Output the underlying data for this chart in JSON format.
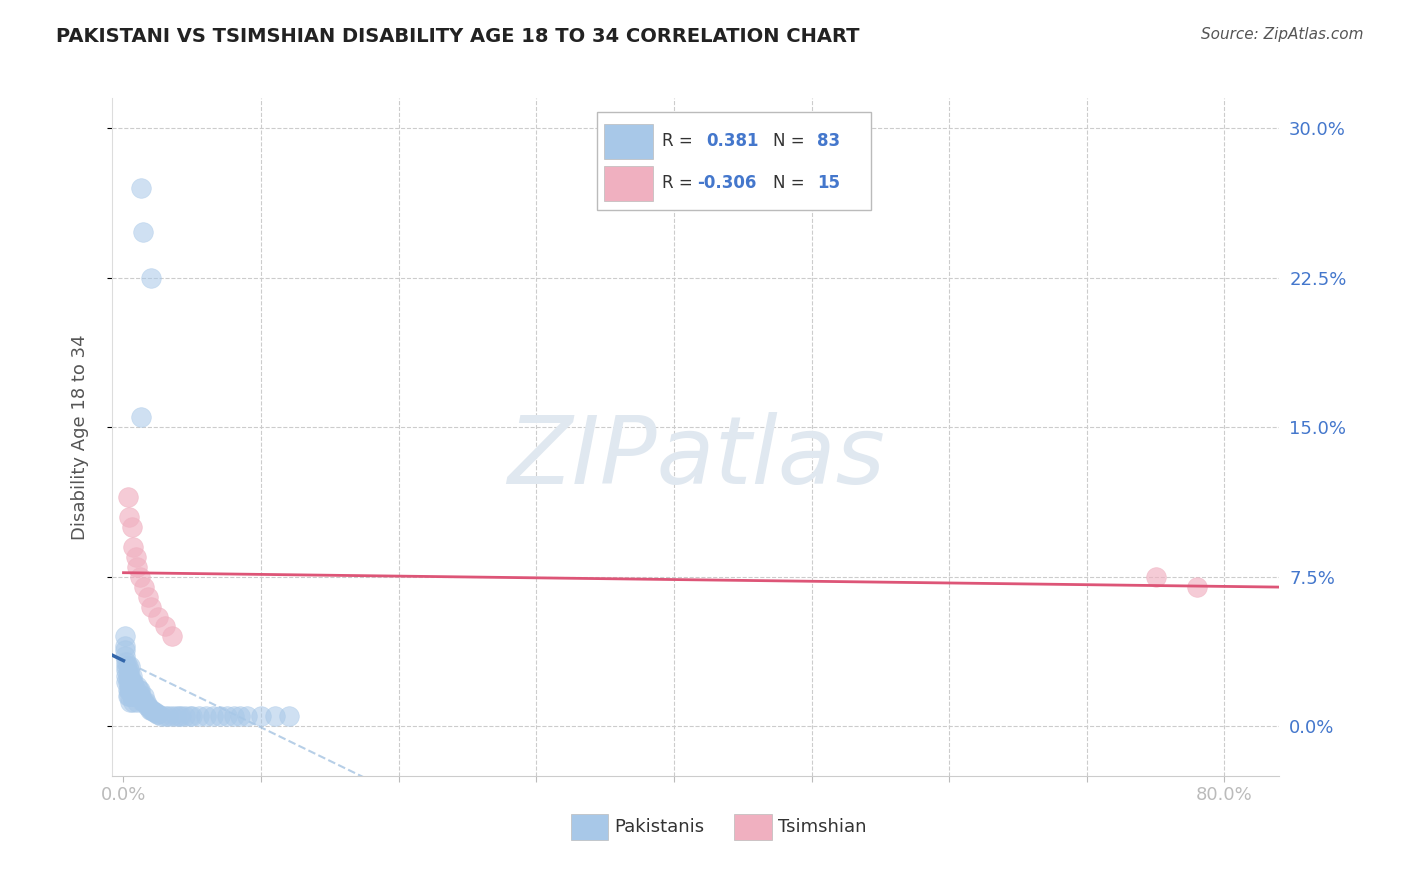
{
  "title": "PAKISTANI VS TSIMSHIAN DISABILITY AGE 18 TO 34 CORRELATION CHART",
  "source": "Source: ZipAtlas.com",
  "xlabel_tick_vals": [
    0.0,
    0.1,
    0.2,
    0.3,
    0.4,
    0.5,
    0.6,
    0.7,
    0.8
  ],
  "xlabel_labels": [
    "0.0%",
    "",
    "",
    "",
    "",
    "",
    "",
    "",
    "80.0%"
  ],
  "ylabel_tick_vals": [
    0.0,
    0.075,
    0.15,
    0.225,
    0.3
  ],
  "ylabel_labels": [
    "0.0%",
    "7.5%",
    "15.0%",
    "22.5%",
    "30.0%"
  ],
  "xlim": [
    -0.008,
    0.84
  ],
  "ylim": [
    -0.025,
    0.315
  ],
  "blue_color": "#a8c8e8",
  "pink_color": "#f0b0c0",
  "line_blue": "#3366aa",
  "line_pink": "#dd5577",
  "dashed_blue": "#99bbdd",
  "accent_blue": "#4477cc",
  "grid_color": "#cccccc",
  "bg_color": "#ffffff",
  "watermark_color": "#e0e8f0",
  "R1": "0.381",
  "N1": "83",
  "R2": "-0.306",
  "N2": "15",
  "pak_x": [
    0.001,
    0.001,
    0.001,
    0.001,
    0.002,
    0.002,
    0.002,
    0.002,
    0.002,
    0.003,
    0.003,
    0.003,
    0.003,
    0.003,
    0.004,
    0.004,
    0.004,
    0.004,
    0.004,
    0.005,
    0.005,
    0.005,
    0.005,
    0.005,
    0.006,
    0.006,
    0.006,
    0.006,
    0.007,
    0.007,
    0.007,
    0.007,
    0.008,
    0.008,
    0.008,
    0.009,
    0.009,
    0.01,
    0.01,
    0.01,
    0.011,
    0.011,
    0.012,
    0.012,
    0.013,
    0.014,
    0.015,
    0.015,
    0.016,
    0.017,
    0.018,
    0.019,
    0.02,
    0.021,
    0.022,
    0.023,
    0.024,
    0.025,
    0.027,
    0.03,
    0.032,
    0.035,
    0.038,
    0.04,
    0.042,
    0.045,
    0.048,
    0.05,
    0.055,
    0.06,
    0.065,
    0.07,
    0.075,
    0.08,
    0.085,
    0.09,
    0.1,
    0.11,
    0.12,
    0.013,
    0.014,
    0.02,
    0.013
  ],
  "pak_y": [
    0.045,
    0.04,
    0.038,
    0.035,
    0.032,
    0.03,
    0.028,
    0.025,
    0.022,
    0.03,
    0.025,
    0.022,
    0.018,
    0.015,
    0.028,
    0.025,
    0.022,
    0.018,
    0.015,
    0.03,
    0.025,
    0.022,
    0.018,
    0.012,
    0.025,
    0.022,
    0.018,
    0.015,
    0.022,
    0.018,
    0.015,
    0.012,
    0.02,
    0.018,
    0.015,
    0.018,
    0.015,
    0.02,
    0.015,
    0.012,
    0.018,
    0.015,
    0.018,
    0.015,
    0.015,
    0.012,
    0.015,
    0.012,
    0.012,
    0.01,
    0.01,
    0.008,
    0.008,
    0.008,
    0.007,
    0.007,
    0.006,
    0.006,
    0.005,
    0.005,
    0.005,
    0.005,
    0.005,
    0.005,
    0.005,
    0.005,
    0.005,
    0.005,
    0.005,
    0.005,
    0.005,
    0.005,
    0.005,
    0.005,
    0.005,
    0.005,
    0.005,
    0.005,
    0.005,
    0.27,
    0.248,
    0.225,
    0.155
  ],
  "tsim_x": [
    0.003,
    0.004,
    0.006,
    0.007,
    0.009,
    0.01,
    0.012,
    0.015,
    0.018,
    0.02,
    0.025,
    0.03,
    0.035,
    0.75,
    0.78
  ],
  "tsim_y": [
    0.115,
    0.105,
    0.1,
    0.09,
    0.085,
    0.08,
    0.075,
    0.07,
    0.065,
    0.06,
    0.055,
    0.05,
    0.045,
    0.075,
    0.07
  ]
}
